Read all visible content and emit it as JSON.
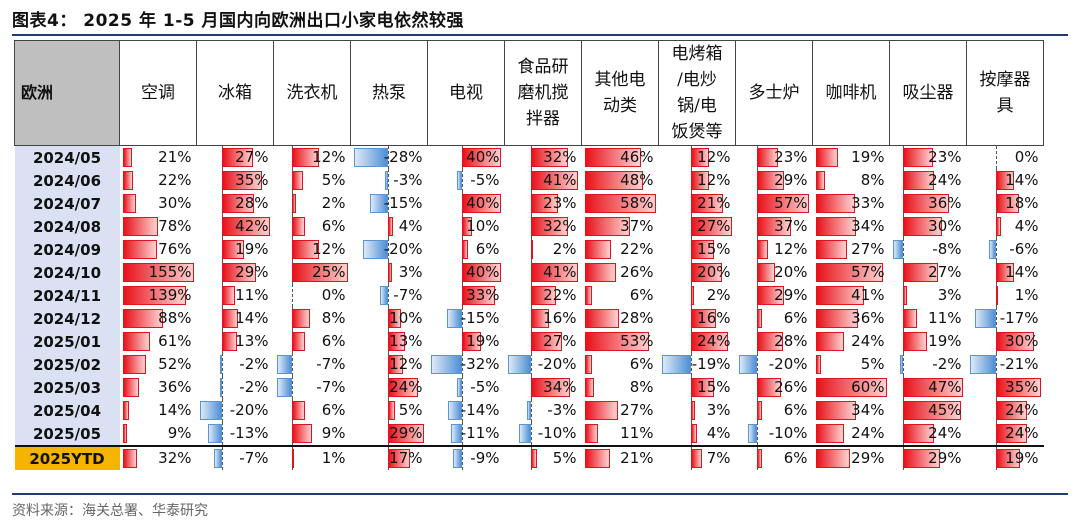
{
  "title": "图表4： 2025 年 1-5 月国内向欧洲出口小家电依然较强",
  "source": "资料来源：海关总署、华泰研究",
  "region_header": "欧洲",
  "columns": [
    "空调",
    "冰箱",
    "洗衣机",
    "热泵",
    "电视",
    "食品研磨机搅拌器",
    "其他电动类",
    "电烤箱/电炒锅/电饭煲等",
    "多士炉",
    "咖啡机",
    "吸尘器",
    "按摩器具"
  ],
  "column_header_lines": [
    [
      "空调"
    ],
    [
      "冰箱"
    ],
    [
      "洗衣机"
    ],
    [
      "热泵"
    ],
    [
      "电视"
    ],
    [
      "食品研",
      "磨机搅",
      "拌器"
    ],
    [
      "其他电",
      "动类"
    ],
    [
      "电烤箱",
      "/电炒",
      "锅/电",
      "饭煲等"
    ],
    [
      "多士炉"
    ],
    [
      "咖啡机"
    ],
    [
      "吸尘器"
    ],
    [
      "按摩器",
      "具"
    ]
  ],
  "rows": [
    {
      "label": "2024/05",
      "values": [
        21,
        27,
        12,
        -28,
        40,
        32,
        46,
        12,
        23,
        19,
        23,
        0
      ]
    },
    {
      "label": "2024/06",
      "values": [
        22,
        35,
        5,
        -3,
        -5,
        41,
        48,
        12,
        29,
        8,
        24,
        14
      ]
    },
    {
      "label": "2024/07",
      "values": [
        30,
        28,
        2,
        -15,
        40,
        23,
        58,
        21,
        57,
        33,
        36,
        18
      ]
    },
    {
      "label": "2024/08",
      "values": [
        78,
        42,
        6,
        4,
        10,
        32,
        37,
        27,
        37,
        34,
        30,
        4
      ]
    },
    {
      "label": "2024/09",
      "values": [
        76,
        19,
        12,
        -20,
        6,
        2,
        22,
        15,
        12,
        27,
        -8,
        -6
      ]
    },
    {
      "label": "2024/10",
      "values": [
        155,
        29,
        25,
        3,
        40,
        41,
        26,
        20,
        20,
        57,
        27,
        14
      ]
    },
    {
      "label": "2024/11",
      "values": [
        139,
        11,
        0,
        -7,
        33,
        22,
        6,
        2,
        29,
        41,
        3,
        1
      ]
    },
    {
      "label": "2024/12",
      "values": [
        88,
        14,
        8,
        10,
        -15,
        16,
        28,
        16,
        6,
        36,
        11,
        -17
      ]
    },
    {
      "label": "2025/01",
      "values": [
        61,
        13,
        6,
        13,
        19,
        27,
        53,
        24,
        28,
        24,
        19,
        30
      ]
    },
    {
      "label": "2025/02",
      "values": [
        52,
        -2,
        -7,
        12,
        -32,
        -20,
        6,
        -19,
        -20,
        5,
        -2,
        -21
      ]
    },
    {
      "label": "2025/03",
      "values": [
        36,
        -2,
        -7,
        24,
        -5,
        34,
        8,
        15,
        26,
        60,
        47,
        35
      ]
    },
    {
      "label": "2025/04",
      "values": [
        14,
        -20,
        6,
        5,
        -14,
        -3,
        27,
        3,
        6,
        34,
        45,
        24
      ]
    },
    {
      "label": "2025/05",
      "values": [
        9,
        -13,
        9,
        29,
        -11,
        -10,
        11,
        4,
        -10,
        24,
        24,
        24
      ]
    },
    {
      "label": "2025YTD",
      "values": [
        32,
        -7,
        1,
        17,
        -9,
        5,
        21,
        7,
        6,
        29,
        29,
        19
      ]
    }
  ],
  "value_suffix": "%",
  "colors": {
    "positive": "#e8121b",
    "negative": "#4f8fd6",
    "label_bg": "#d9e1f2",
    "ytd_bg": "#f4b400",
    "header_bg": "#bfbfbf"
  }
}
